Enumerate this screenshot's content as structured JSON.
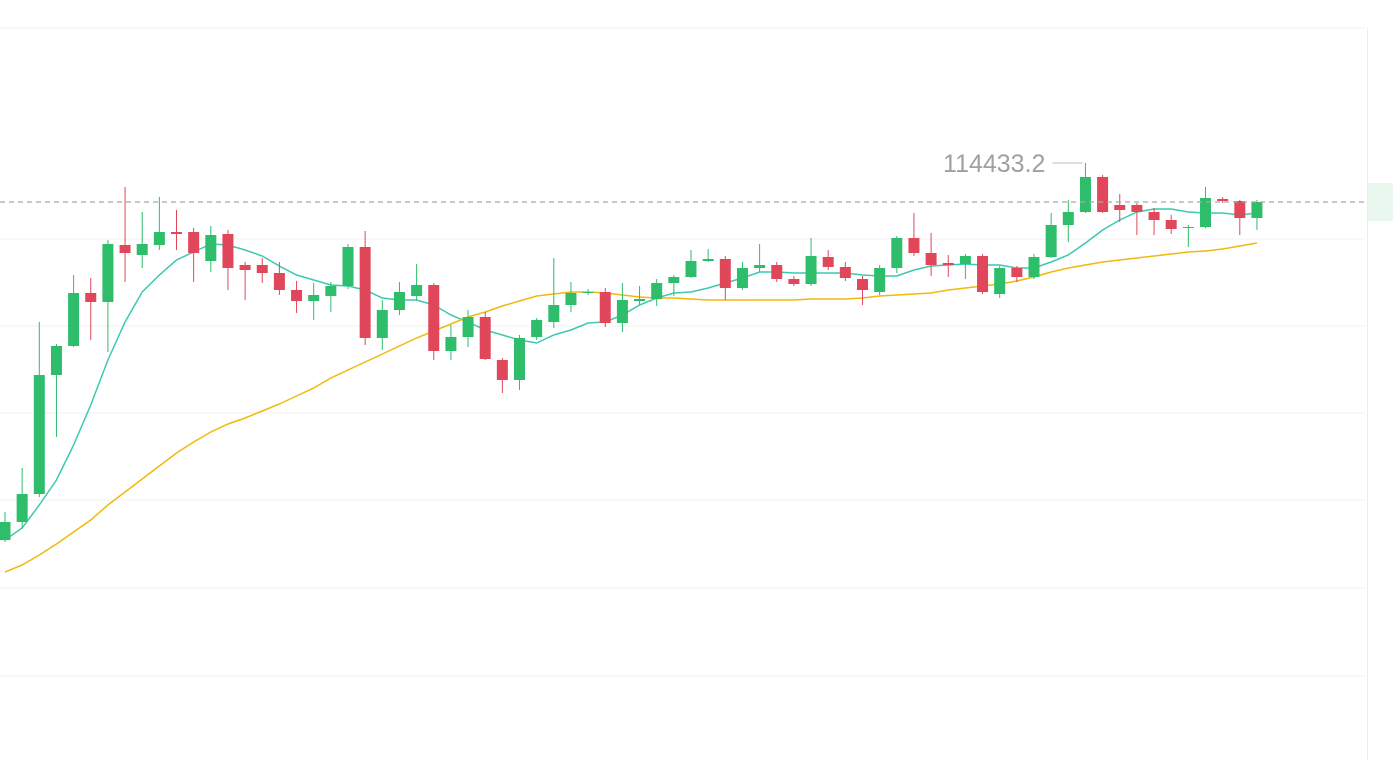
{
  "chart_data": {
    "type": "candlestick",
    "open": [
      112548,
      112638,
      112778,
      113373,
      113518,
      113783,
      113738,
      114023,
      113973,
      114023,
      114088,
      114088,
      113943,
      114078,
      113923,
      113923,
      113883,
      113798,
      113743,
      113768,
      113818,
      114013,
      113558,
      113698,
      113768,
      113823,
      113493,
      113563,
      113663,
      113448,
      113348,
      113563,
      113638,
      113723,
      113783,
      113788,
      113633,
      113743,
      113753,
      113833,
      113863,
      113943,
      113953,
      113808,
      113908,
      113923,
      113853,
      113828,
      113963,
      113913,
      113853,
      113788,
      113908,
      114058,
      113983,
      113933,
      113928,
      113968,
      113778,
      113908,
      113863,
      113963,
      114123,
      114188,
      114363,
      114223,
      114223,
      114188,
      114148,
      114108,
      114113,
      114253,
      114243,
      114158
    ],
    "high": [
      112688,
      112908,
      113638,
      113528,
      113873,
      113858,
      114048,
      114313,
      114188,
      114263,
      114198,
      114108,
      114118,
      114098,
      113938,
      113958,
      113938,
      113843,
      113833,
      113838,
      114028,
      114093,
      113748,
      113838,
      113928,
      113833,
      113623,
      113698,
      113688,
      113458,
      113573,
      113658,
      113958,
      113838,
      113803,
      113808,
      113833,
      113818,
      113853,
      113873,
      113998,
      114003,
      113968,
      113938,
      114028,
      113938,
      113868,
      114058,
      113998,
      113938,
      113868,
      113923,
      114068,
      114183,
      114083,
      113973,
      113978,
      113978,
      113918,
      113918,
      113978,
      114183,
      114248,
      114433.2,
      114373,
      114278,
      114233,
      114208,
      114173,
      114123,
      114313,
      114263,
      114248,
      114248
    ],
    "low": [
      112538,
      112608,
      112763,
      113063,
      113513,
      113548,
      113488,
      113838,
      113908,
      113998,
      113998,
      113838,
      113888,
      113798,
      113748,
      113833,
      113773,
      113683,
      113648,
      113688,
      113803,
      113523,
      113498,
      113673,
      113748,
      113448,
      113448,
      113513,
      113448,
      113283,
      113298,
      113548,
      113608,
      113688,
      113773,
      113613,
      113588,
      113723,
      113718,
      113768,
      113858,
      113938,
      113748,
      113798,
      113888,
      113838,
      113818,
      113818,
      113898,
      113843,
      113723,
      113773,
      113883,
      113968,
      113868,
      113863,
      113853,
      113778,
      113758,
      113838,
      113853,
      113958,
      114038,
      114183,
      114183,
      114138,
      114073,
      114073,
      114078,
      114013,
      114108,
      114233,
      114073,
      114098
    ],
    "close": [
      112638,
      112778,
      113373,
      113518,
      113783,
      113738,
      114028,
      113983,
      114028,
      114088,
      114078,
      113983,
      114073,
      113908,
      113898,
      113883,
      113798,
      113743,
      113773,
      113818,
      114013,
      113558,
      113698,
      113788,
      113823,
      113493,
      113563,
      113663,
      113453,
      113348,
      113558,
      113648,
      113723,
      113783,
      113788,
      113633,
      113748,
      113753,
      113833,
      113863,
      113943,
      113953,
      113808,
      113908,
      113923,
      113853,
      113828,
      113968,
      113913,
      113858,
      113798,
      113908,
      114058,
      113983,
      113923,
      113923,
      113968,
      113788,
      113908,
      113863,
      113963,
      114123,
      114188,
      114363,
      114188,
      114198,
      114188,
      114148,
      114103,
      114113,
      114258,
      114243,
      114158,
      114238
    ],
    "up_color": "#2ebd6b",
    "down_color": "#e0475a",
    "series": [
      {
        "color": "#3cc9b0",
        "values": [
          112548,
          112608,
          112723,
          112848,
          113023,
          113223,
          113448,
          113638,
          113788,
          113873,
          113948,
          113988,
          114028,
          114023,
          113998,
          113968,
          113918,
          113873,
          113848,
          113823,
          113818,
          113798,
          113758,
          113748,
          113748,
          113723,
          113673,
          113638,
          113598,
          113573,
          113548,
          113533,
          113573,
          113598,
          113633,
          113638,
          113673,
          113723,
          113758,
          113783,
          113788,
          113808,
          113833,
          113858,
          113888,
          113888,
          113883,
          113883,
          113883,
          113883,
          113873,
          113868,
          113868,
          113898,
          113918,
          113923,
          113928,
          113923,
          113923,
          113908,
          113908,
          113938,
          113973,
          114033,
          114098,
          114148,
          114188,
          114203,
          114203,
          114188,
          114183,
          114183,
          114173,
          114183
        ]
      },
      {
        "color": "#f0b90b",
        "values": [
          112388,
          112423,
          112473,
          112528,
          112588,
          112648,
          112723,
          112788,
          112853,
          112918,
          112983,
          113038,
          113088,
          113128,
          113158,
          113193,
          113228,
          113268,
          113308,
          113358,
          113398,
          113438,
          113478,
          113518,
          113558,
          113593,
          113628,
          113663,
          113688,
          113718,
          113743,
          113768,
          113778,
          113788,
          113788,
          113783,
          113773,
          113763,
          113758,
          113758,
          113753,
          113748,
          113748,
          113748,
          113748,
          113748,
          113748,
          113753,
          113753,
          113753,
          113758,
          113768,
          113773,
          113778,
          113783,
          113798,
          113808,
          113818,
          113828,
          113843,
          113863,
          113888,
          113908,
          113923,
          113938,
          113948,
          113958,
          113968,
          113978,
          113988,
          113993,
          114003,
          114018,
          114033
        ]
      }
    ],
    "ylim": [
      111448,
      115248
    ]
  }
}
